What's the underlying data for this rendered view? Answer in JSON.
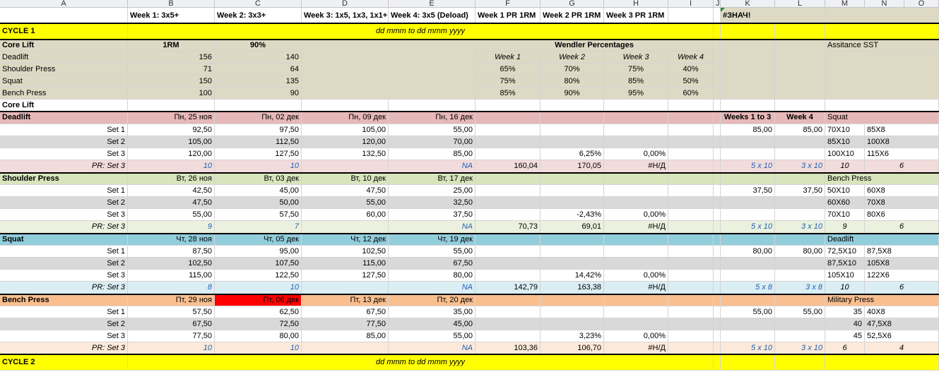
{
  "columns": [
    "A",
    "B",
    "C",
    "D",
    "E",
    "F",
    "G",
    "H",
    "I",
    "J",
    "K",
    "L",
    "M",
    "N",
    "O"
  ],
  "header_row": {
    "week1": "Week 1: 3x5+",
    "week2": "Week 2: 3x3+",
    "week3": "Week 3: 1x5, 1x3, 1x1+",
    "week4": "Week 4: 3x5 (Deload)",
    "pr1": "Week 1 PR 1RM",
    "pr2": "Week 2 PR 1RM",
    "pr3": "Week 3 PR 1RM",
    "error": "#ЗНАЧ!"
  },
  "cycle1": {
    "title": "CYCLE 1",
    "dates": "dd mmm to dd mmm yyyy"
  },
  "cycle2": {
    "title": "CYCLE 2",
    "dates": "dd mmm to dd mmm yyyy"
  },
  "core": {
    "header": "Core Lift",
    "col_1rm": "1RM",
    "col_90": "90%",
    "wendler_title": "Wendler Percentages",
    "assist_title": "Assitance SST",
    "weeks": [
      "Week 1",
      "Week 2",
      "Week 3",
      "Week 4"
    ],
    "lifts": [
      {
        "name": "Deadlift",
        "rm": "156",
        "p90": "140"
      },
      {
        "name": "Shoulder Press",
        "rm": "71",
        "p90": "64"
      },
      {
        "name": "Squat",
        "rm": "150",
        "p90": "135"
      },
      {
        "name": "Bench Press",
        "rm": "100",
        "p90": "90"
      }
    ],
    "percentages": [
      [
        "65%",
        "70%",
        "75%",
        "40%"
      ],
      [
        "75%",
        "80%",
        "85%",
        "50%"
      ],
      [
        "85%",
        "90%",
        "95%",
        "60%"
      ]
    ],
    "footer": "Core Lift"
  },
  "lifts": [
    {
      "name": "Deadlift",
      "dates": [
        "Пн, 25 ноя",
        "Пн, 02 дек",
        "Пн, 09 дек",
        "Пн, 16 дек"
      ],
      "k_head": "Weeks 1 to 3",
      "l_head": "Week 4",
      "m_head": "Squat",
      "sets": [
        {
          "label": "Set 1",
          "v": [
            "92,50",
            "97,50",
            "105,00",
            "55,00"
          ],
          "g": "",
          "h": "",
          "k": "85,00",
          "l": "85,00",
          "m": "70X10",
          "n": "85X8"
        },
        {
          "label": "Set 2",
          "v": [
            "105,00",
            "112,50",
            "120,00",
            "70,00"
          ],
          "g": "",
          "h": "",
          "k": "",
          "l": "",
          "m": "85X10",
          "n": "100X8"
        },
        {
          "label": "Set 3",
          "v": [
            "120,00",
            "127,50",
            "132,50",
            "85,00"
          ],
          "g": "6,25%",
          "h": "0,00%",
          "k": "",
          "l": "",
          "m": "100X10",
          "n": "115X6"
        }
      ],
      "pr": {
        "label": "PR: Set 3",
        "b": "10",
        "c": "10",
        "e": "NA",
        "f": "160,04",
        "g": "170,05",
        "h": "#Н/Д",
        "k": "5 x 10",
        "l": "3 x 10",
        "m": "10",
        "n": "6"
      }
    },
    {
      "name": "Shoulder Press",
      "dates": [
        "Вт, 26 ноя",
        "Вт, 03 дек",
        "Вт, 10 дек",
        "Вт, 17 дек"
      ],
      "k_head": "",
      "l_head": "",
      "m_head": "Bench Press",
      "sets": [
        {
          "label": "Set 1",
          "v": [
            "42,50",
            "45,00",
            "47,50",
            "25,00"
          ],
          "g": "",
          "h": "",
          "k": "37,50",
          "l": "37,50",
          "m": "50X10",
          "n": "60X8"
        },
        {
          "label": "Set 2",
          "v": [
            "47,50",
            "50,00",
            "55,00",
            "32,50"
          ],
          "g": "",
          "h": "",
          "k": "",
          "l": "",
          "m": "60X60",
          "n": "70X8"
        },
        {
          "label": "Set 3",
          "v": [
            "55,00",
            "57,50",
            "60,00",
            "37,50"
          ],
          "g": "-2,43%",
          "h": "0,00%",
          "k": "",
          "l": "",
          "m": "70X10",
          "n": "80X6"
        }
      ],
      "pr": {
        "label": "PR: Set 3",
        "b": "9",
        "c": "7",
        "e": "NA",
        "f": "70,73",
        "g": "69,01",
        "h": "#Н/Д",
        "k": "5 x 10",
        "l": "3 x 10",
        "m": "9",
        "n": "6"
      }
    },
    {
      "name": "Squat",
      "dates": [
        "Чт, 28 ноя",
        "Чт, 05 дек",
        "Чт, 12 дек",
        "Чт, 19 дек"
      ],
      "k_head": "",
      "l_head": "",
      "m_head": "Deadlift",
      "sets": [
        {
          "label": "Set 1",
          "v": [
            "87,50",
            "95,00",
            "102,50",
            "55,00"
          ],
          "g": "",
          "h": "",
          "k": "80,00",
          "l": "80,00",
          "m": "72,5X10",
          "n": "87,5X8"
        },
        {
          "label": "Set 2",
          "v": [
            "102,50",
            "107,50",
            "115,00",
            "67,50"
          ],
          "g": "",
          "h": "",
          "k": "",
          "l": "",
          "m": "87,5X10",
          "n": "105X8"
        },
        {
          "label": "Set 3",
          "v": [
            "115,00",
            "122,50",
            "127,50",
            "80,00"
          ],
          "g": "14,42%",
          "h": "0,00%",
          "k": "",
          "l": "",
          "m": "105X10",
          "n": "122X6"
        }
      ],
      "pr": {
        "label": "PR: Set 3",
        "b": "8",
        "c": "10",
        "e": "NA",
        "f": "142,79",
        "g": "163,38",
        "h": "#Н/Д",
        "k": "5 x 8",
        "l": "3 x 8",
        "m": "10",
        "n": "6"
      }
    },
    {
      "name": "Bench Press",
      "dates": [
        "Пт, 29 ноя",
        "Пт, 06 дек",
        "Пт, 13 дек",
        "Пт, 20 дек"
      ],
      "k_head": "",
      "l_head": "",
      "m_head": "Military Press",
      "sets": [
        {
          "label": "Set 1",
          "v": [
            "57,50",
            "62,50",
            "67,50",
            "35,00"
          ],
          "g": "",
          "h": "",
          "k": "55,00",
          "l": "55,00",
          "m": "35",
          "n": "40X8"
        },
        {
          "label": "Set 2",
          "v": [
            "67,50",
            "72,50",
            "77,50",
            "45,00"
          ],
          "g": "",
          "h": "",
          "k": "",
          "l": "",
          "m": "40",
          "n": "47,5X8"
        },
        {
          "label": "Set 3",
          "v": [
            "77,50",
            "80,00",
            "85,00",
            "55,00"
          ],
          "g": "3,23%",
          "h": "0,00%",
          "k": "",
          "l": "",
          "m": "45",
          "n": "52,5X6"
        }
      ],
      "pr": {
        "label": "PR: Set 3",
        "b": "10",
        "c": "10",
        "e": "NA",
        "f": "103,36",
        "g": "106,70",
        "h": "#Н/Д",
        "k": "5 x 10",
        "l": "3 x 10",
        "m": "6",
        "n": "4"
      }
    }
  ],
  "colors": {
    "tan": "#ddd9c4",
    "yellow": "#ffff00",
    "deadlift": [
      "#e6b8b7",
      "#f2dcdb"
    ],
    "shoulder": [
      "#d8e4bc",
      "#ebf1de"
    ],
    "squat": [
      "#92cddc",
      "#daeef3"
    ],
    "bench": [
      "#fabf8f",
      "#fde9d9"
    ],
    "highlight": "#ff0000"
  }
}
